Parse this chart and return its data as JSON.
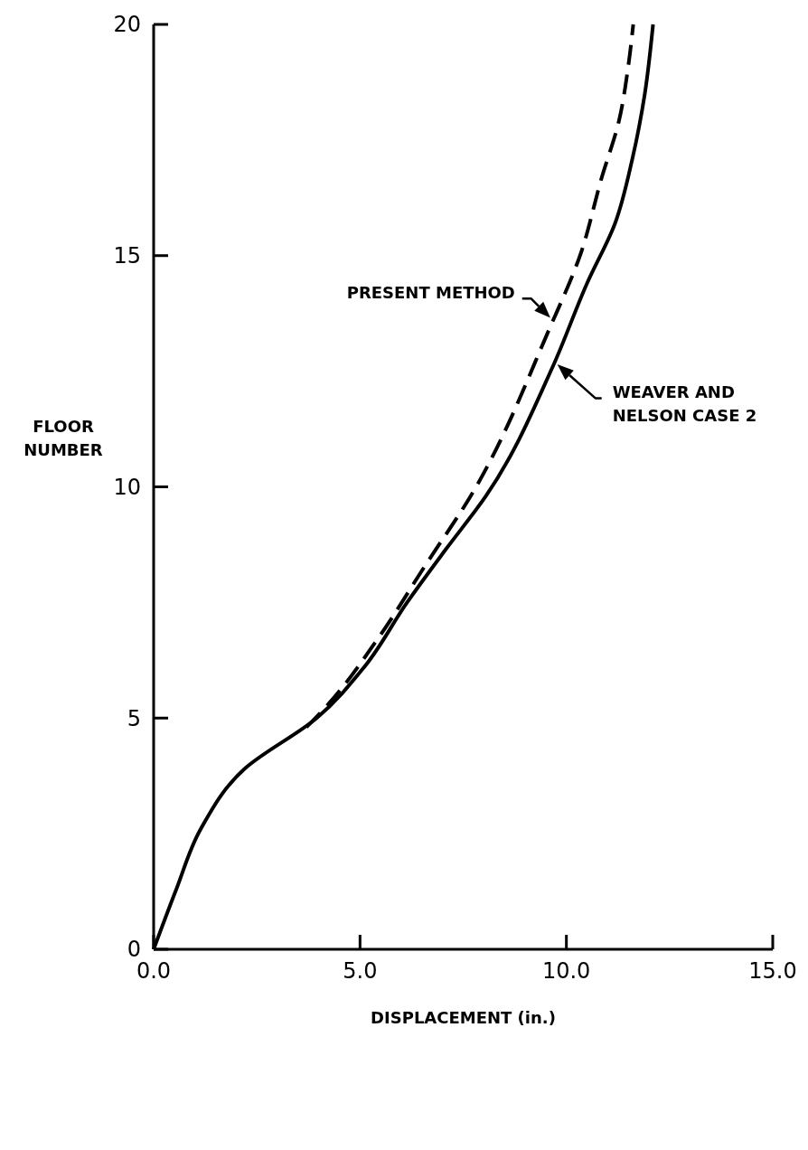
{
  "chart_data": {
    "type": "line",
    "xlabel": "DISPLACEMENT (in.)",
    "ylabel": "FLOOR\nNUMBER",
    "xlim": [
      0,
      15
    ],
    "ylim": [
      0,
      20
    ],
    "xticks": [
      {
        "value": 0,
        "label": "0.0"
      },
      {
        "value": 5,
        "label": "5.0"
      },
      {
        "value": 10,
        "label": "10.0"
      },
      {
        "value": 15,
        "label": "15.0"
      }
    ],
    "yticks": [
      0,
      5,
      10,
      15,
      20
    ],
    "grid": false,
    "series": [
      {
        "name": "WEAVER AND\nNELSON CASE 2",
        "color": "#000000",
        "line_style": "solid",
        "x": [
          0,
          0.55,
          1.14,
          2.2,
          3.95,
          5.1,
          6.14,
          7.08,
          8.05,
          9.67,
          10.5,
          11.18,
          11.6,
          11.9,
          12.1
        ],
        "values": [
          0,
          1.3,
          2.6,
          3.9,
          5,
          6.1,
          7.5,
          8.65,
          9.8,
          12.6,
          14.4,
          15.7,
          17.1,
          18.5,
          20
        ]
      },
      {
        "name": "PRESENT METHOD",
        "color": "#000000",
        "line_style": "dashed",
        "x": [
          3.7,
          4.23,
          5.42,
          6.58,
          7.68,
          9.58,
          10.33,
          10.86,
          11.27,
          11.5,
          11.62
        ],
        "values": [
          4.8,
          5.3,
          6.7,
          8.3,
          9.8,
          13.4,
          15,
          16.7,
          17.9,
          19.1,
          20
        ]
      }
    ]
  }
}
